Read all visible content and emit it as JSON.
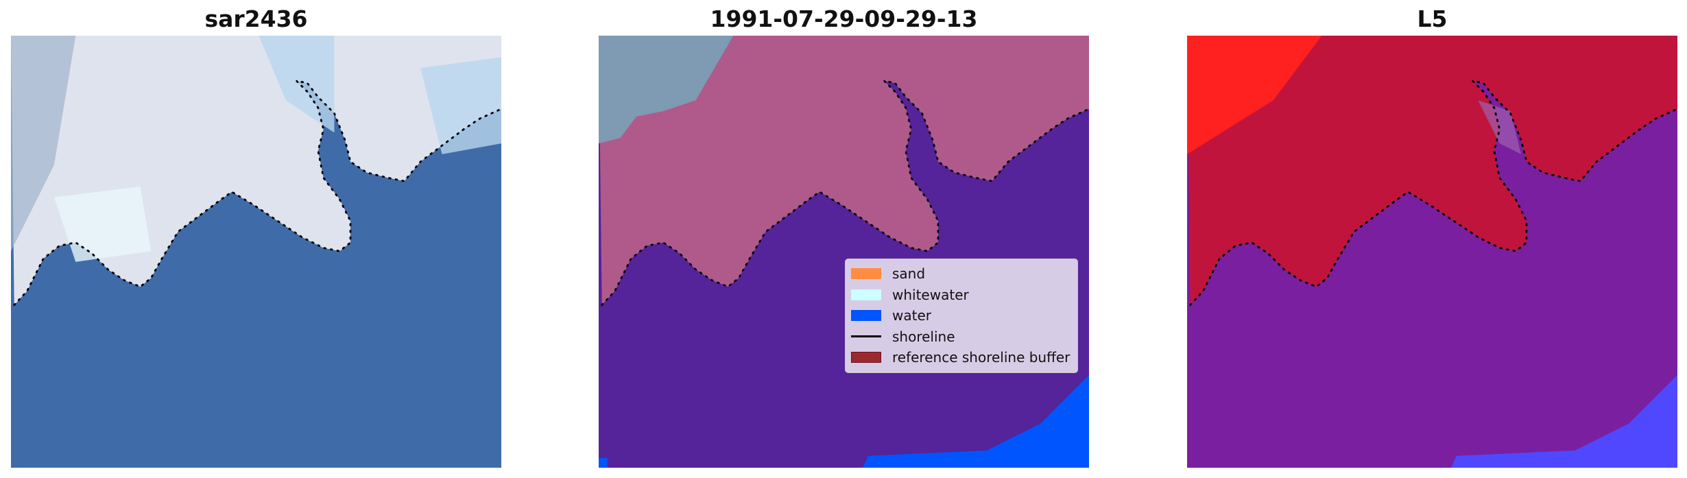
{
  "panels": [
    {
      "title": "sar2436",
      "colors": {
        "land": "#dfe3ee",
        "sea": "#3f6ca8",
        "accent": "#b9d6ee"
      }
    },
    {
      "title": "1991-07-29-09-29-13",
      "colors": {
        "land": "#b05a8c",
        "sea": "#55239a",
        "corner": "#7f9ab3",
        "water": "#0055ff"
      }
    },
    {
      "title": "L5",
      "colors": {
        "land": "#c0143c",
        "sea": "#7a1fa0",
        "corner": "#ff2020",
        "water": "#5048ff"
      }
    }
  ],
  "legend": {
    "position": "lower-right of middle panel",
    "items": [
      {
        "label": "sand",
        "type": "patch",
        "color": "#ff8c40"
      },
      {
        "label": "whitewater",
        "type": "patch",
        "color": "#ccffff"
      },
      {
        "label": "water",
        "type": "patch",
        "color": "#0055ff"
      },
      {
        "label": "shoreline",
        "type": "line",
        "color": "#000000"
      },
      {
        "label": "reference shoreline buffer",
        "type": "patch",
        "color": "#9b2a30"
      }
    ]
  }
}
